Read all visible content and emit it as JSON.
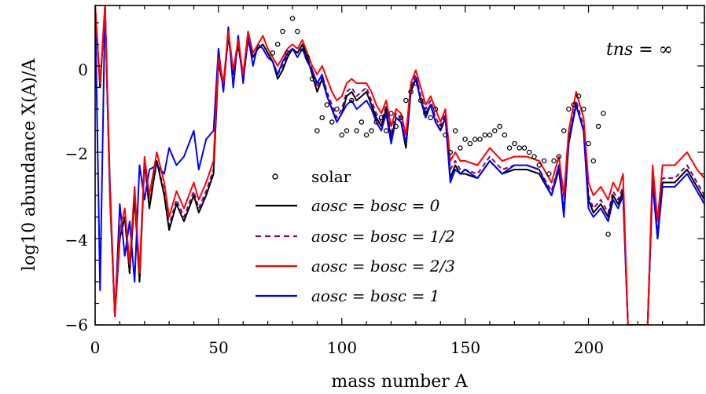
{
  "chart_data": {
    "type": "line",
    "xlabel": "mass number A",
    "ylabel": "log10 abundance X(A)/A",
    "xlim": [
      0,
      247
    ],
    "ylim": [
      -6,
      1.4
    ],
    "xticks": [
      "0",
      "50",
      "100",
      "150",
      "200"
    ],
    "yticks": [
      "0",
      "−2",
      "−4",
      "−6"
    ],
    "annotation": "tns = ∞",
    "legend": [
      "solar",
      "aosc = bosc = 0",
      "aosc = bosc = 1/2",
      "aosc = bosc = 2/3",
      "aosc = bosc = 1"
    ],
    "colors": {
      "solar": "#000000",
      "s0": "#000000",
      "s1": "#800080",
      "s2": "#ff0000",
      "s3": "#0000ff"
    },
    "series": [
      {
        "name": "aosc = bosc = 0",
        "x": [
          0,
          2,
          4,
          6,
          8,
          10,
          12,
          14,
          16,
          18,
          20,
          22,
          25,
          28,
          30,
          33,
          36,
          40,
          42,
          45,
          48,
          50,
          52,
          54,
          56,
          58,
          60,
          62,
          64,
          66,
          68,
          70,
          72,
          74,
          76,
          78,
          80,
          82,
          84,
          86,
          88,
          90,
          92,
          94,
          96,
          98,
          100,
          102,
          104,
          106,
          108,
          110,
          112,
          114,
          116,
          118,
          120,
          122,
          124,
          126,
          128,
          130,
          132,
          134,
          136,
          138,
          140,
          142,
          144,
          146,
          148,
          150,
          155,
          160,
          165,
          170,
          175,
          180,
          185,
          188,
          190,
          192,
          195,
          198,
          200,
          202,
          205,
          208,
          210,
          212,
          214,
          216,
          218,
          220,
          222,
          224,
          226,
          228,
          230,
          235,
          240,
          244,
          247
        ],
        "y": [
          1.4,
          -0.5,
          1.4,
          -3,
          -5.8,
          -4,
          -3.5,
          -4.8,
          -3,
          -5,
          -2.2,
          -3.3,
          -2.2,
          -3,
          -3.8,
          -3.2,
          -3.6,
          -3,
          -3.4,
          -3,
          -2.5,
          0.1,
          -0.5,
          0.7,
          -0.2,
          0.5,
          -0.3,
          0.6,
          0.2,
          0.4,
          0.5,
          0.3,
          0.1,
          -0.3,
          -0.1,
          0.2,
          0.4,
          0.3,
          0.5,
          0.2,
          -0.2,
          -0.6,
          -0.3,
          -0.7,
          -1,
          -1.3,
          -1.1,
          -0.7,
          -0.6,
          -0.8,
          -0.7,
          -0.6,
          -0.9,
          -1.2,
          -1.4,
          -1,
          -1.7,
          -1.2,
          -1.3,
          -1.9,
          -0.6,
          -0.3,
          -0.8,
          -1.1,
          -0.9,
          -1.3,
          -1.5,
          -1.2,
          -2.6,
          -2.3,
          -2.5,
          -2.5,
          -2.6,
          -2.2,
          -2.5,
          -2.4,
          -2.4,
          -2.5,
          -3,
          -2.4,
          -3.4,
          -1.8,
          -0.9,
          -1.5,
          -3.1,
          -3.4,
          -3.2,
          -3.5,
          -3,
          -3.2,
          -2.9,
          -6,
          -6,
          -6,
          -6,
          -6,
          -2.6,
          -4,
          -2.7,
          -2.7,
          -2.4,
          -2.8,
          -3.1
        ]
      },
      {
        "name": "aosc = bosc = 1/2",
        "x": [
          0,
          2,
          4,
          6,
          8,
          10,
          12,
          14,
          16,
          18,
          20,
          22,
          25,
          28,
          30,
          33,
          36,
          40,
          42,
          45,
          48,
          50,
          52,
          54,
          56,
          58,
          60,
          62,
          64,
          66,
          68,
          70,
          72,
          74,
          76,
          78,
          80,
          82,
          84,
          86,
          88,
          90,
          92,
          94,
          96,
          98,
          100,
          102,
          104,
          106,
          108,
          110,
          112,
          114,
          116,
          118,
          120,
          122,
          124,
          126,
          128,
          130,
          132,
          134,
          136,
          138,
          140,
          142,
          144,
          146,
          148,
          150,
          155,
          160,
          165,
          170,
          175,
          180,
          185,
          188,
          190,
          192,
          195,
          198,
          200,
          202,
          205,
          208,
          210,
          212,
          214,
          216,
          218,
          220,
          222,
          224,
          226,
          228,
          230,
          235,
          240,
          244,
          247
        ],
        "y": [
          1.4,
          -0.5,
          1.4,
          -3,
          -5.8,
          -4,
          -3.5,
          -4.8,
          -3,
          -5,
          -2.2,
          -3.2,
          -2.2,
          -2.9,
          -3.7,
          -3.1,
          -3.5,
          -2.9,
          -3.3,
          -2.9,
          -2.4,
          0.1,
          -0.5,
          0.7,
          -0.2,
          0.5,
          -0.3,
          0.6,
          0.2,
          0.4,
          0.5,
          0.3,
          0.1,
          -0.2,
          0,
          0.3,
          0.4,
          0.3,
          0.5,
          0.2,
          -0.1,
          -0.5,
          -0.2,
          -0.6,
          -0.9,
          -1.2,
          -1,
          -0.6,
          -0.5,
          -0.7,
          -0.6,
          -0.5,
          -0.8,
          -1.1,
          -1.3,
          -0.9,
          -1.6,
          -1.1,
          -1.2,
          -1.8,
          -0.5,
          -0.2,
          -0.7,
          -1,
          -0.8,
          -1.2,
          -1.4,
          -1.1,
          -2.4,
          -2.2,
          -2.4,
          -2.4,
          -2.5,
          -2.1,
          -2.4,
          -2.3,
          -2.3,
          -2.4,
          -2.9,
          -2.3,
          -3.3,
          -1.7,
          -0.8,
          -1.4,
          -3,
          -3.3,
          -3.1,
          -3.4,
          -2.9,
          -3.1,
          -2.8,
          -6,
          -6,
          -6,
          -6,
          -6,
          -2.5,
          -3.9,
          -2.6,
          -2.6,
          -2.3,
          -2.7,
          -3
        ]
      },
      {
        "name": "aosc = bosc = 2/3",
        "x": [
          0,
          2,
          4,
          6,
          8,
          10,
          12,
          14,
          16,
          18,
          20,
          22,
          25,
          28,
          30,
          33,
          36,
          40,
          42,
          45,
          48,
          50,
          52,
          54,
          56,
          58,
          60,
          62,
          64,
          66,
          68,
          70,
          72,
          74,
          76,
          78,
          80,
          82,
          84,
          86,
          88,
          90,
          92,
          94,
          96,
          98,
          100,
          102,
          104,
          106,
          108,
          110,
          112,
          114,
          116,
          118,
          120,
          122,
          124,
          126,
          128,
          130,
          132,
          134,
          136,
          138,
          140,
          142,
          144,
          146,
          148,
          150,
          155,
          160,
          165,
          170,
          175,
          180,
          185,
          188,
          190,
          192,
          195,
          198,
          200,
          202,
          205,
          208,
          210,
          212,
          214,
          216,
          218,
          220,
          222,
          224,
          226,
          228,
          230,
          235,
          240,
          244,
          247
        ],
        "y": [
          1.4,
          -0.4,
          1.4,
          -2.9,
          -5.8,
          -3.8,
          -3.3,
          -4.6,
          -2.8,
          -4.8,
          -2.1,
          -3,
          -2,
          -2.7,
          -3.5,
          -2.9,
          -3.3,
          -2.7,
          -3.1,
          -2.7,
          -2.2,
          0.2,
          -0.4,
          0.8,
          -0.1,
          0.6,
          -0.2,
          0.8,
          0.3,
          0.5,
          0.7,
          0.4,
          0.2,
          0,
          0.2,
          0.4,
          0.5,
          0.4,
          0.6,
          0.3,
          0,
          -0.2,
          0,
          -0.3,
          -0.6,
          -0.8,
          -0.7,
          -0.4,
          -0.3,
          -0.4,
          -0.4,
          -0.4,
          -0.6,
          -0.9,
          -1.1,
          -0.8,
          -1.4,
          -1,
          -1.1,
          -1.6,
          -0.4,
          -0.1,
          -0.5,
          -0.9,
          -0.7,
          -1,
          -1.3,
          -1,
          -2.2,
          -2,
          -2.2,
          -2.2,
          -2.3,
          -1.9,
          -2.2,
          -2.1,
          -2.1,
          -2.2,
          -2.7,
          -2.1,
          -3,
          -1.5,
          -0.6,
          -1.2,
          -2.7,
          -3,
          -2.8,
          -3.1,
          -2.7,
          -2.9,
          -2.5,
          -6,
          -6,
          -6,
          -6,
          -6,
          -2.3,
          -3.6,
          -2.3,
          -2.3,
          -2,
          -2.4,
          -2.6
        ]
      },
      {
        "name": "aosc = bosc = 1",
        "x": [
          0,
          2,
          4,
          6,
          8,
          10,
          12,
          14,
          16,
          18,
          20,
          22,
          25,
          28,
          30,
          33,
          36,
          40,
          42,
          45,
          48,
          50,
          52,
          54,
          56,
          58,
          60,
          62,
          64,
          66,
          68,
          70,
          72,
          74,
          76,
          78,
          80,
          82,
          84,
          86,
          88,
          90,
          92,
          94,
          96,
          98,
          100,
          102,
          104,
          106,
          108,
          110,
          112,
          114,
          116,
          118,
          120,
          122,
          124,
          126,
          128,
          130,
          132,
          134,
          136,
          138,
          140,
          142,
          144,
          146,
          148,
          150,
          155,
          160,
          165,
          170,
          175,
          180,
          185,
          188,
          190,
          192,
          195,
          198,
          200,
          202,
          205,
          208,
          210,
          212,
          214,
          216,
          218,
          220,
          222,
          224,
          226,
          228,
          230,
          235,
          240,
          244,
          247
        ],
        "y": [
          1.4,
          -5.2,
          1.4,
          -2.7,
          -5.8,
          -3.2,
          -4.4,
          -3.6,
          -5,
          -2.3,
          -3.1,
          -2.4,
          -2.3,
          -2.5,
          -1.9,
          -2.3,
          -2.1,
          -1.5,
          -2.4,
          -1.7,
          -1.5,
          0.4,
          -0.6,
          0.9,
          -0.5,
          0.7,
          -0.4,
          0.7,
          0,
          0.5,
          0.4,
          0.2,
          0.1,
          -0.2,
          0.1,
          0.3,
          0.4,
          0.2,
          0.4,
          0.1,
          -0.1,
          -0.4,
          -0.2,
          -0.7,
          -1,
          -1.3,
          -1.1,
          -0.9,
          -0.8,
          -1,
          -0.9,
          -0.8,
          -1,
          -1.3,
          -1.5,
          -1.1,
          -1.8,
          -1.2,
          -1.3,
          -1.8,
          -0.5,
          -0.3,
          -0.8,
          -1.2,
          -0.9,
          -1.3,
          -1.5,
          -1.2,
          -2.7,
          -2.4,
          -2.5,
          -2.4,
          -2.6,
          -2.2,
          -2.5,
          -2.3,
          -2.3,
          -2.4,
          -3,
          -2.3,
          -3.5,
          -1.7,
          -0.9,
          -1.5,
          -3.3,
          -3.5,
          -3.3,
          -3.6,
          -3.1,
          -3.3,
          -3,
          -6,
          -6,
          -6,
          -6,
          -6,
          -2.7,
          -4,
          -2.8,
          -2.8,
          -2.5,
          -2.9,
          -3.2
        ]
      }
    ],
    "solar": {
      "x": [
        72,
        74,
        76,
        78,
        80,
        82,
        84,
        86,
        88,
        90,
        92,
        94,
        96,
        98,
        100,
        102,
        104,
        106,
        108,
        110,
        112,
        114,
        116,
        118,
        120,
        122,
        124,
        126,
        128,
        130,
        132,
        134,
        136,
        138,
        140,
        142,
        144,
        146,
        148,
        150,
        152,
        154,
        156,
        158,
        160,
        162,
        164,
        166,
        168,
        170,
        172,
        174,
        176,
        178,
        180,
        182,
        184,
        186,
        188,
        190,
        192,
        194,
        196,
        198,
        200,
        202,
        204,
        206,
        208
      ],
      "y": [
        0.3,
        0.5,
        0.8,
        0.3,
        1.1,
        0.8,
        0.4,
        0.2,
        -0.3,
        -1.5,
        -1.2,
        -0.9,
        -1.3,
        -1.0,
        -1.6,
        -1.5,
        -0.8,
        -1.5,
        -1.3,
        -1.6,
        -1.5,
        -1.3,
        -1.2,
        -1.5,
        -1.1,
        -1.4,
        -1.2,
        -0.8,
        -0.6,
        -0.4,
        -0.8,
        -1.1,
        -1.2,
        -1.0,
        -1.4,
        -1.6,
        -2.0,
        -1.5,
        -1.9,
        -1.7,
        -1.8,
        -1.7,
        -1.7,
        -1.6,
        -1.6,
        -1.5,
        -1.4,
        -1.6,
        -1.9,
        -1.8,
        -1.9,
        -1.9,
        -2.0,
        -2.1,
        -2.3,
        -2.2,
        -2.5,
        -2.2,
        -2.1,
        -1.5,
        -1.0,
        -0.9,
        -0.7,
        -1.0,
        -1.8,
        -2.2,
        -1.4,
        -1.1,
        -3.9
      ]
    }
  }
}
